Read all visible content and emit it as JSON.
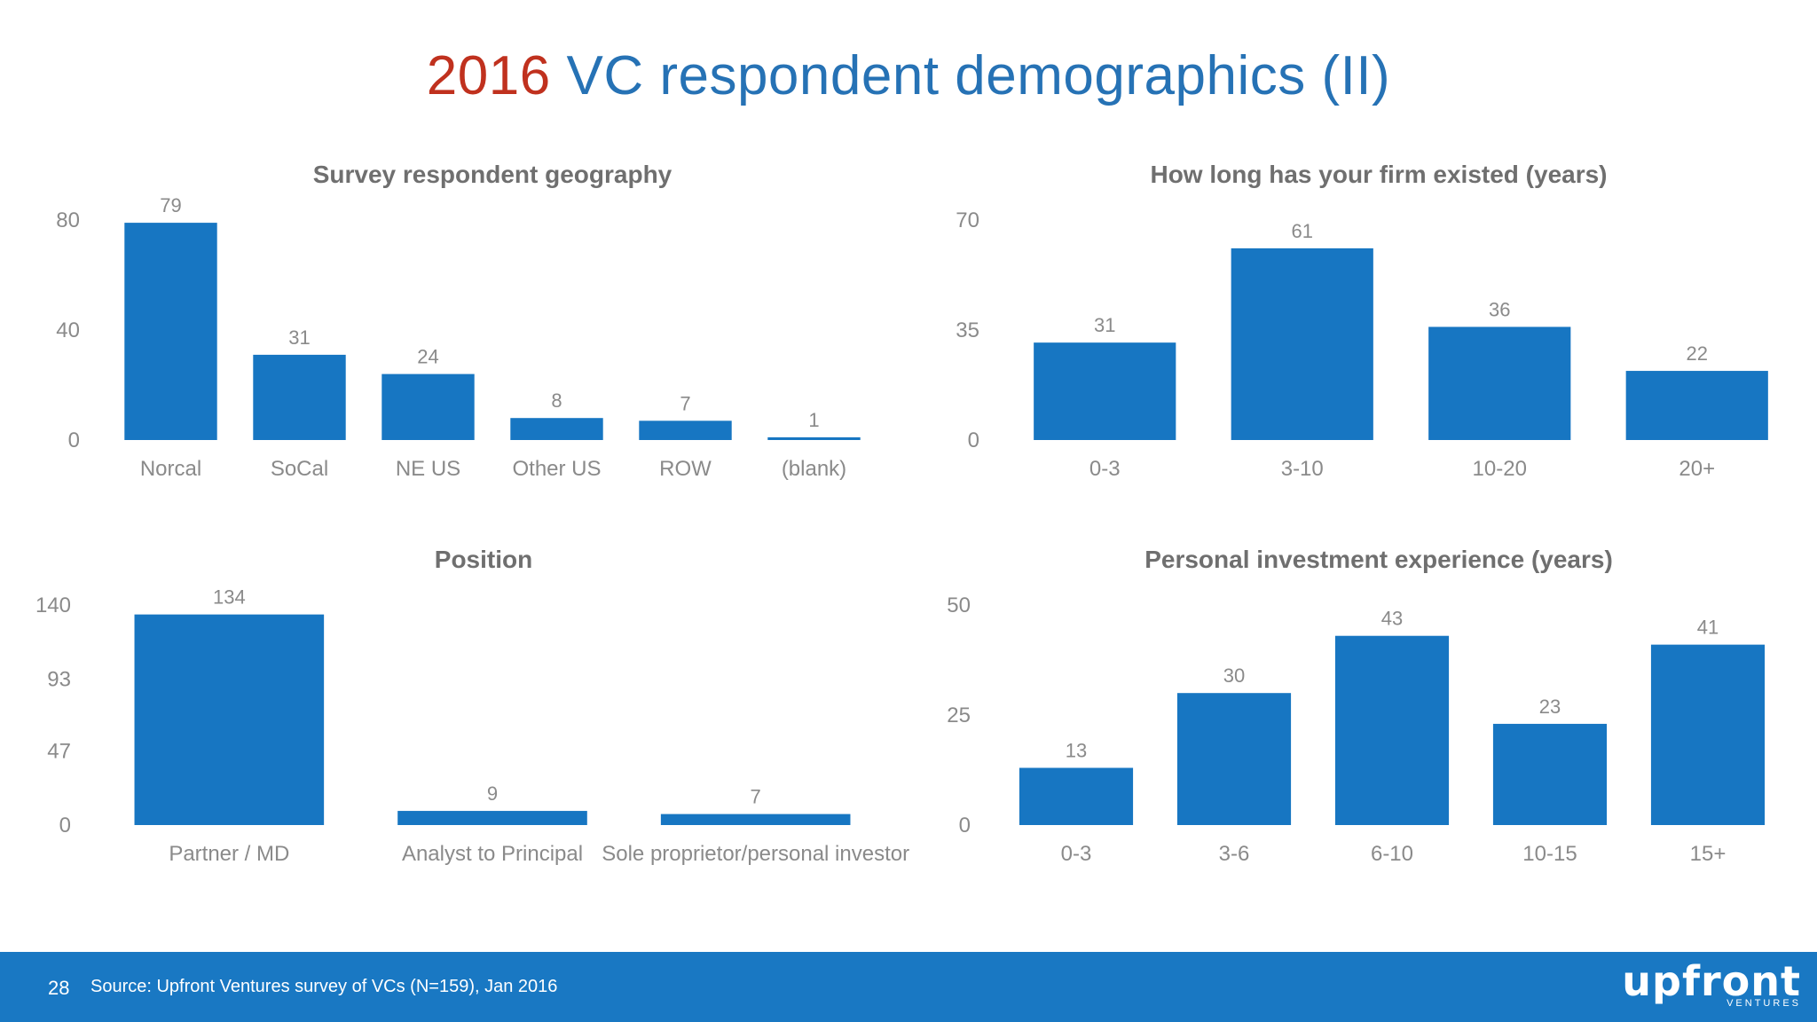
{
  "slide": {
    "title_year": "2016",
    "title_rest": "VC respondent demographics (II)",
    "page_number": "28",
    "source": "Source: Upfront Ventures survey of VCs (N=159), Jan 2016",
    "logo_text": "upfront",
    "logo_subtext": "VENTURES",
    "accent_color": "#1776c2",
    "year_color": "#c0311e",
    "title_color": "#2672b5"
  },
  "chart_data": [
    {
      "type": "bar",
      "title": "Survey respondent geography",
      "categories": [
        "Norcal",
        "SoCal",
        "NE US",
        "Other US",
        "ROW",
        "(blank)"
      ],
      "values": [
        79,
        31,
        24,
        8,
        7,
        1
      ],
      "ylim": [
        0,
        80
      ],
      "yticks": [
        0,
        40,
        80
      ],
      "xlabel": "",
      "ylabel": "",
      "grid": false,
      "legend": "none"
    },
    {
      "type": "bar",
      "title": "How long has your firm existed (years)",
      "categories": [
        "0-3",
        "3-10",
        "10-20",
        "20+"
      ],
      "values": [
        31,
        61,
        36,
        22
      ],
      "ylim": [
        0,
        70
      ],
      "yticks": [
        0,
        35,
        70
      ],
      "xlabel": "",
      "ylabel": "",
      "grid": false,
      "legend": "none"
    },
    {
      "type": "bar",
      "title": "Position",
      "categories": [
        "Partner / MD",
        "Analyst to Principal",
        "Sole proprietor/personal investor"
      ],
      "values": [
        134,
        9,
        7
      ],
      "ylim": [
        0,
        140
      ],
      "yticks": [
        0,
        47,
        93,
        140
      ],
      "xlabel": "",
      "ylabel": "",
      "grid": false,
      "legend": "none"
    },
    {
      "type": "bar",
      "title": "Personal investment experience (years)",
      "categories": [
        "0-3",
        "3-6",
        "6-10",
        "10-15",
        "15+"
      ],
      "values": [
        13,
        30,
        43,
        23,
        41
      ],
      "ylim": [
        0,
        50
      ],
      "yticks": [
        0,
        25,
        50
      ],
      "xlabel": "",
      "ylabel": "",
      "grid": false,
      "legend": "none"
    }
  ]
}
